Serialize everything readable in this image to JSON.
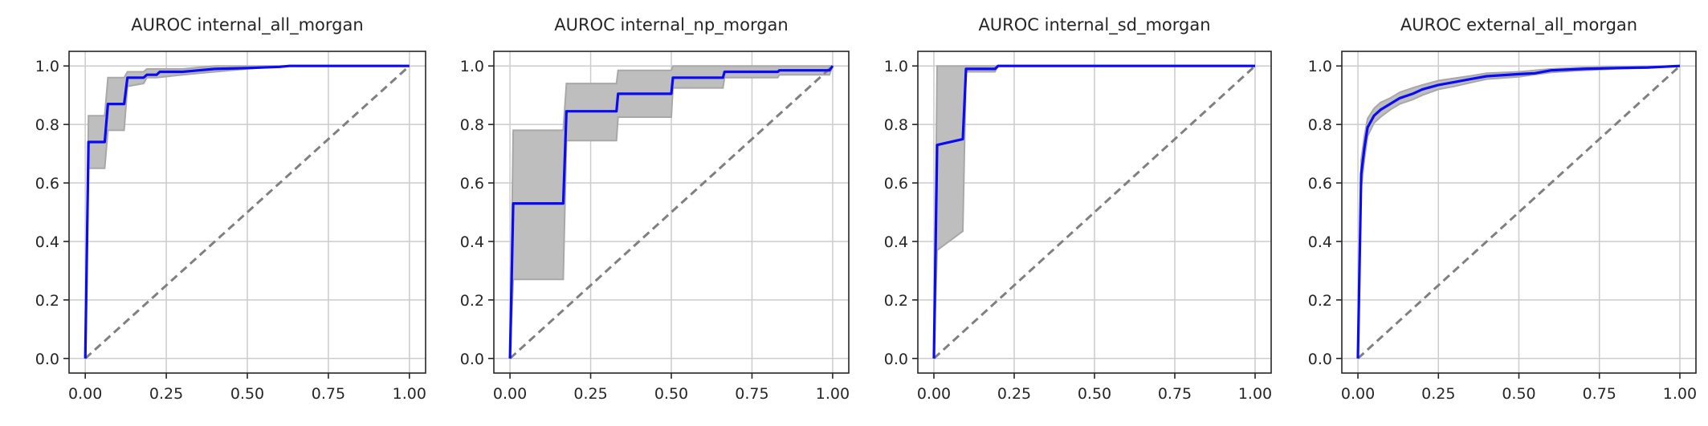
{
  "colors": {
    "roc": "#0a0af5",
    "band": "#bebebe",
    "diagonal": "#808080",
    "grid": "#cccccc"
  },
  "chart_data": [
    {
      "type": "line",
      "title": "AUROC internal_all_morgan",
      "xlabel": "",
      "ylabel": "",
      "xlim": [
        -0.05,
        1.05
      ],
      "ylim": [
        -0.05,
        1.05
      ],
      "xticks": [
        "0.00",
        "0.25",
        "0.50",
        "0.75",
        "1.00"
      ],
      "yticks": [
        "0.0",
        "0.2",
        "0.4",
        "0.6",
        "0.8",
        "1.0"
      ],
      "grid": true,
      "diagonal": [
        [
          0,
          0
        ],
        [
          1,
          1
        ]
      ],
      "roc": [
        [
          0,
          0
        ],
        [
          0.01,
          0.74
        ],
        [
          0.06,
          0.74
        ],
        [
          0.07,
          0.87
        ],
        [
          0.12,
          0.87
        ],
        [
          0.13,
          0.96
        ],
        [
          0.18,
          0.96
        ],
        [
          0.19,
          0.97
        ],
        [
          0.22,
          0.97
        ],
        [
          0.23,
          0.98
        ],
        [
          0.3,
          0.98
        ],
        [
          0.35,
          0.985
        ],
        [
          0.4,
          0.99
        ],
        [
          0.5,
          0.993
        ],
        [
          0.6,
          0.997
        ],
        [
          0.63,
          1.0
        ],
        [
          1.0,
          1.0
        ]
      ],
      "band_upper": [
        [
          0,
          0
        ],
        [
          0.01,
          0.83
        ],
        [
          0.06,
          0.83
        ],
        [
          0.07,
          0.96
        ],
        [
          0.12,
          0.96
        ],
        [
          0.13,
          0.98
        ],
        [
          0.18,
          0.98
        ],
        [
          0.19,
          0.99
        ],
        [
          0.3,
          0.99
        ],
        [
          0.4,
          1.0
        ],
        [
          1.0,
          1.0
        ]
      ],
      "band_lower": [
        [
          0,
          0
        ],
        [
          0.01,
          0.65
        ],
        [
          0.06,
          0.65
        ],
        [
          0.07,
          0.78
        ],
        [
          0.12,
          0.78
        ],
        [
          0.13,
          0.93
        ],
        [
          0.18,
          0.94
        ],
        [
          0.19,
          0.96
        ],
        [
          0.22,
          0.96
        ],
        [
          0.3,
          0.97
        ],
        [
          0.4,
          0.98
        ],
        [
          0.5,
          0.99
        ],
        [
          0.63,
          1.0
        ],
        [
          1.0,
          1.0
        ]
      ]
    },
    {
      "type": "line",
      "title": "AUROC internal_np_morgan",
      "xlabel": "",
      "ylabel": "",
      "xlim": [
        -0.05,
        1.05
      ],
      "ylim": [
        -0.05,
        1.05
      ],
      "xticks": [
        "0.00",
        "0.25",
        "0.50",
        "0.75",
        "1.00"
      ],
      "yticks": [
        "0.0",
        "0.2",
        "0.4",
        "0.6",
        "0.8",
        "1.0"
      ],
      "grid": true,
      "diagonal": [
        [
          0,
          0
        ],
        [
          1,
          1
        ]
      ],
      "roc": [
        [
          0,
          0
        ],
        [
          0.01,
          0.53
        ],
        [
          0.165,
          0.53
        ],
        [
          0.175,
          0.845
        ],
        [
          0.33,
          0.845
        ],
        [
          0.335,
          0.905
        ],
        [
          0.5,
          0.905
        ],
        [
          0.505,
          0.96
        ],
        [
          0.66,
          0.96
        ],
        [
          0.665,
          0.98
        ],
        [
          0.83,
          0.98
        ],
        [
          0.835,
          0.985
        ],
        [
          0.99,
          0.985
        ],
        [
          1.0,
          1.0
        ]
      ],
      "band_upper": [
        [
          0,
          0
        ],
        [
          0.01,
          0.78
        ],
        [
          0.165,
          0.78
        ],
        [
          0.175,
          0.94
        ],
        [
          0.33,
          0.94
        ],
        [
          0.335,
          0.985
        ],
        [
          0.5,
          0.985
        ],
        [
          0.505,
          1.0
        ],
        [
          1.0,
          1.0
        ]
      ],
      "band_lower": [
        [
          0,
          0
        ],
        [
          0.01,
          0.27
        ],
        [
          0.165,
          0.27
        ],
        [
          0.175,
          0.745
        ],
        [
          0.33,
          0.745
        ],
        [
          0.335,
          0.825
        ],
        [
          0.5,
          0.825
        ],
        [
          0.505,
          0.925
        ],
        [
          0.66,
          0.925
        ],
        [
          0.665,
          0.96
        ],
        [
          0.83,
          0.96
        ],
        [
          0.835,
          0.97
        ],
        [
          0.99,
          0.97
        ],
        [
          1.0,
          1.0
        ]
      ]
    },
    {
      "type": "line",
      "title": "AUROC internal_sd_morgan",
      "xlabel": "",
      "ylabel": "",
      "xlim": [
        -0.05,
        1.05
      ],
      "ylim": [
        -0.05,
        1.05
      ],
      "xticks": [
        "0.00",
        "0.25",
        "0.50",
        "0.75",
        "1.00"
      ],
      "yticks": [
        "0.0",
        "0.2",
        "0.4",
        "0.6",
        "0.8",
        "1.0"
      ],
      "grid": true,
      "diagonal": [
        [
          0,
          0
        ],
        [
          1,
          1
        ]
      ],
      "roc": [
        [
          0,
          0
        ],
        [
          0.01,
          0.73
        ],
        [
          0.09,
          0.75
        ],
        [
          0.1,
          0.99
        ],
        [
          0.19,
          0.99
        ],
        [
          0.2,
          1.0
        ],
        [
          1.0,
          1.0
        ]
      ],
      "band_upper": [
        [
          0,
          0
        ],
        [
          0.01,
          1.0
        ],
        [
          1.0,
          1.0
        ]
      ],
      "band_lower": [
        [
          0,
          0
        ],
        [
          0.01,
          0.37
        ],
        [
          0.09,
          0.435
        ],
        [
          0.1,
          0.98
        ],
        [
          0.19,
          0.98
        ],
        [
          0.2,
          1.0
        ],
        [
          1.0,
          1.0
        ]
      ]
    },
    {
      "type": "line",
      "title": "AUROC external_all_morgan",
      "xlabel": "",
      "ylabel": "",
      "xlim": [
        -0.05,
        1.05
      ],
      "ylim": [
        -0.05,
        1.05
      ],
      "xticks": [
        "0.00",
        "0.25",
        "0.50",
        "0.75",
        "1.00"
      ],
      "yticks": [
        "0.0",
        "0.2",
        "0.4",
        "0.6",
        "0.8",
        "1.0"
      ],
      "grid": true,
      "diagonal": [
        [
          0,
          0
        ],
        [
          1,
          1
        ]
      ],
      "roc": [
        [
          0,
          0
        ],
        [
          0.01,
          0.63
        ],
        [
          0.02,
          0.72
        ],
        [
          0.03,
          0.79
        ],
        [
          0.05,
          0.83
        ],
        [
          0.07,
          0.85
        ],
        [
          0.1,
          0.87
        ],
        [
          0.13,
          0.89
        ],
        [
          0.17,
          0.905
        ],
        [
          0.2,
          0.92
        ],
        [
          0.25,
          0.935
        ],
        [
          0.3,
          0.945
        ],
        [
          0.35,
          0.955
        ],
        [
          0.4,
          0.965
        ],
        [
          0.5,
          0.972
        ],
        [
          0.55,
          0.975
        ],
        [
          0.6,
          0.985
        ],
        [
          0.7,
          0.99
        ],
        [
          0.8,
          0.993
        ],
        [
          0.9,
          0.995
        ],
        [
          1.0,
          1.0
        ]
      ],
      "band_upper": [
        [
          0,
          0
        ],
        [
          0.01,
          0.68
        ],
        [
          0.02,
          0.76
        ],
        [
          0.03,
          0.82
        ],
        [
          0.05,
          0.855
        ],
        [
          0.07,
          0.875
        ],
        [
          0.1,
          0.89
        ],
        [
          0.13,
          0.91
        ],
        [
          0.17,
          0.925
        ],
        [
          0.2,
          0.935
        ],
        [
          0.25,
          0.95
        ],
        [
          0.3,
          0.958
        ],
        [
          0.35,
          0.966
        ],
        [
          0.4,
          0.975
        ],
        [
          0.5,
          0.98
        ],
        [
          0.6,
          0.99
        ],
        [
          0.7,
          0.995
        ],
        [
          0.8,
          0.997
        ],
        [
          1.0,
          1.0
        ]
      ],
      "band_lower": [
        [
          0,
          0
        ],
        [
          0.01,
          0.58
        ],
        [
          0.02,
          0.68
        ],
        [
          0.03,
          0.76
        ],
        [
          0.05,
          0.805
        ],
        [
          0.07,
          0.825
        ],
        [
          0.1,
          0.85
        ],
        [
          0.13,
          0.87
        ],
        [
          0.17,
          0.885
        ],
        [
          0.2,
          0.9
        ],
        [
          0.25,
          0.92
        ],
        [
          0.3,
          0.93
        ],
        [
          0.35,
          0.943
        ],
        [
          0.4,
          0.955
        ],
        [
          0.5,
          0.963
        ],
        [
          0.6,
          0.978
        ],
        [
          0.7,
          0.985
        ],
        [
          0.8,
          0.99
        ],
        [
          0.9,
          0.993
        ],
        [
          1.0,
          1.0
        ]
      ]
    }
  ]
}
